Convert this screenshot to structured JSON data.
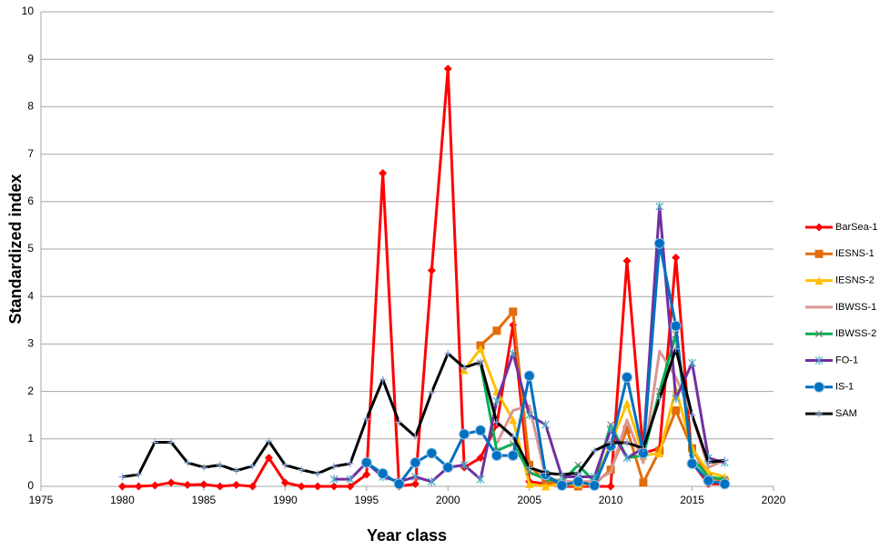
{
  "chart_data": {
    "type": "line",
    "x_label": "Year class",
    "y_label": "Standardized index",
    "x": [
      1980,
      1981,
      1982,
      1983,
      1984,
      1985,
      1986,
      1987,
      1988,
      1989,
      1990,
      1991,
      1992,
      1993,
      1994,
      1995,
      1996,
      1997,
      1998,
      1999,
      2000,
      2001,
      2002,
      2003,
      2004,
      2005,
      2006,
      2007,
      2008,
      2009,
      2010,
      2011,
      2012,
      2013,
      2014,
      2015,
      2016,
      2017
    ],
    "xlim": [
      1975,
      2020
    ],
    "xticks": [
      1975,
      1980,
      1985,
      1990,
      1995,
      2000,
      2005,
      2010,
      2015,
      2020
    ],
    "ylim": [
      0,
      10
    ],
    "yticks": [
      0,
      1,
      2,
      3,
      4,
      5,
      6,
      7,
      8,
      9,
      10
    ],
    "grid": true,
    "legend": "right",
    "series": [
      {
        "name": "BarSea-1",
        "color": "#ff0000",
        "marker": "diamond",
        "values": [
          0,
          0,
          0.02,
          0.08,
          0.03,
          0.04,
          0,
          0.03,
          0,
          0.6,
          0.08,
          0,
          0,
          0,
          0,
          0.25,
          6.6,
          0,
          0.05,
          4.55,
          8.8,
          0.4,
          0.6,
          1.3,
          3.4,
          0.1,
          0.05,
          0,
          0,
          0,
          0,
          4.75,
          0.7,
          0.8,
          4.82,
          0.5,
          0.05,
          0.05
        ]
      },
      {
        "name": "IESNS-1",
        "color": "#e46c0a",
        "marker": "square",
        "values": [
          null,
          null,
          null,
          null,
          null,
          null,
          null,
          null,
          null,
          null,
          null,
          null,
          null,
          null,
          null,
          null,
          null,
          null,
          null,
          null,
          null,
          null,
          2.97,
          3.28,
          3.68,
          0.45,
          0.1,
          0.05,
          0,
          0.05,
          0.35,
          1.2,
          0.08,
          0.75,
          1.6,
          0.8,
          0.2,
          0.1
        ]
      },
      {
        "name": "IESNS-2",
        "color": "#ffc000",
        "marker": "triangle",
        "values": [
          null,
          null,
          null,
          null,
          null,
          null,
          null,
          null,
          null,
          null,
          null,
          null,
          null,
          null,
          null,
          null,
          null,
          null,
          null,
          null,
          null,
          2.45,
          2.9,
          2.0,
          1.4,
          0.05,
          0,
          0.05,
          0.05,
          0.05,
          0.9,
          1.75,
          0.65,
          0.7,
          2.05,
          0.8,
          0.3,
          0.2
        ]
      },
      {
        "name": "IBWSS-1",
        "color": "#d99694",
        "marker": "none",
        "values": [
          null,
          null,
          null,
          null,
          null,
          null,
          null,
          null,
          null,
          null,
          null,
          null,
          null,
          null,
          null,
          null,
          null,
          null,
          null,
          null,
          null,
          null,
          null,
          0.9,
          1.6,
          1.7,
          0.2,
          0.1,
          0.1,
          0.1,
          0.3,
          1.4,
          0.5,
          2.85,
          2.3,
          1.5,
          0.4,
          0.55
        ]
      },
      {
        "name": "IBWSS-2",
        "color": "#00b050",
        "marker": "x",
        "values": [
          null,
          null,
          null,
          null,
          null,
          null,
          null,
          null,
          null,
          null,
          null,
          null,
          null,
          null,
          null,
          null,
          null,
          null,
          null,
          null,
          null,
          null,
          2.6,
          0.75,
          0.9,
          0.3,
          0.15,
          0.1,
          0.45,
          0.1,
          1.3,
          0.6,
          0.65,
          2.0,
          3.2,
          0.6,
          0.2,
          0.15
        ]
      },
      {
        "name": "FO-1",
        "color": "#7030a0",
        "marker": "star",
        "values": [
          null,
          null,
          null,
          null,
          null,
          null,
          null,
          null,
          null,
          null,
          null,
          null,
          null,
          0.15,
          0.15,
          0.5,
          0.2,
          0.1,
          0.2,
          0.1,
          0.4,
          0.45,
          0.15,
          1.8,
          2.8,
          1.5,
          1.3,
          0.2,
          0.2,
          0.2,
          1.2,
          0.6,
          0.8,
          5.9,
          1.85,
          2.6,
          0.6,
          0.5
        ]
      },
      {
        "name": "IS-1",
        "color": "#0070c0",
        "marker": "circle",
        "values": [
          null,
          null,
          null,
          null,
          null,
          null,
          null,
          null,
          null,
          null,
          null,
          null,
          null,
          null,
          null,
          0.5,
          0.27,
          0.05,
          0.5,
          0.7,
          0.4,
          1.1,
          1.18,
          0.65,
          0.65,
          2.33,
          0.25,
          0.02,
          0.1,
          0.02,
          0.85,
          2.3,
          0.7,
          5.12,
          3.38,
          0.48,
          0.12,
          0.05
        ]
      },
      {
        "name": "SAM",
        "color": "#000000",
        "marker": "plus",
        "values": [
          0.2,
          0.25,
          0.93,
          0.93,
          0.5,
          0.4,
          0.45,
          0.33,
          0.43,
          0.95,
          0.45,
          0.35,
          0.27,
          0.42,
          0.48,
          1.42,
          2.25,
          1.35,
          1.05,
          1.98,
          2.8,
          2.5,
          2.62,
          1.35,
          1.05,
          0.4,
          0.28,
          0.25,
          0.28,
          0.75,
          0.92,
          0.92,
          0.8,
          1.85,
          2.9,
          1.5,
          0.5,
          0.55
        ]
      }
    ]
  }
}
